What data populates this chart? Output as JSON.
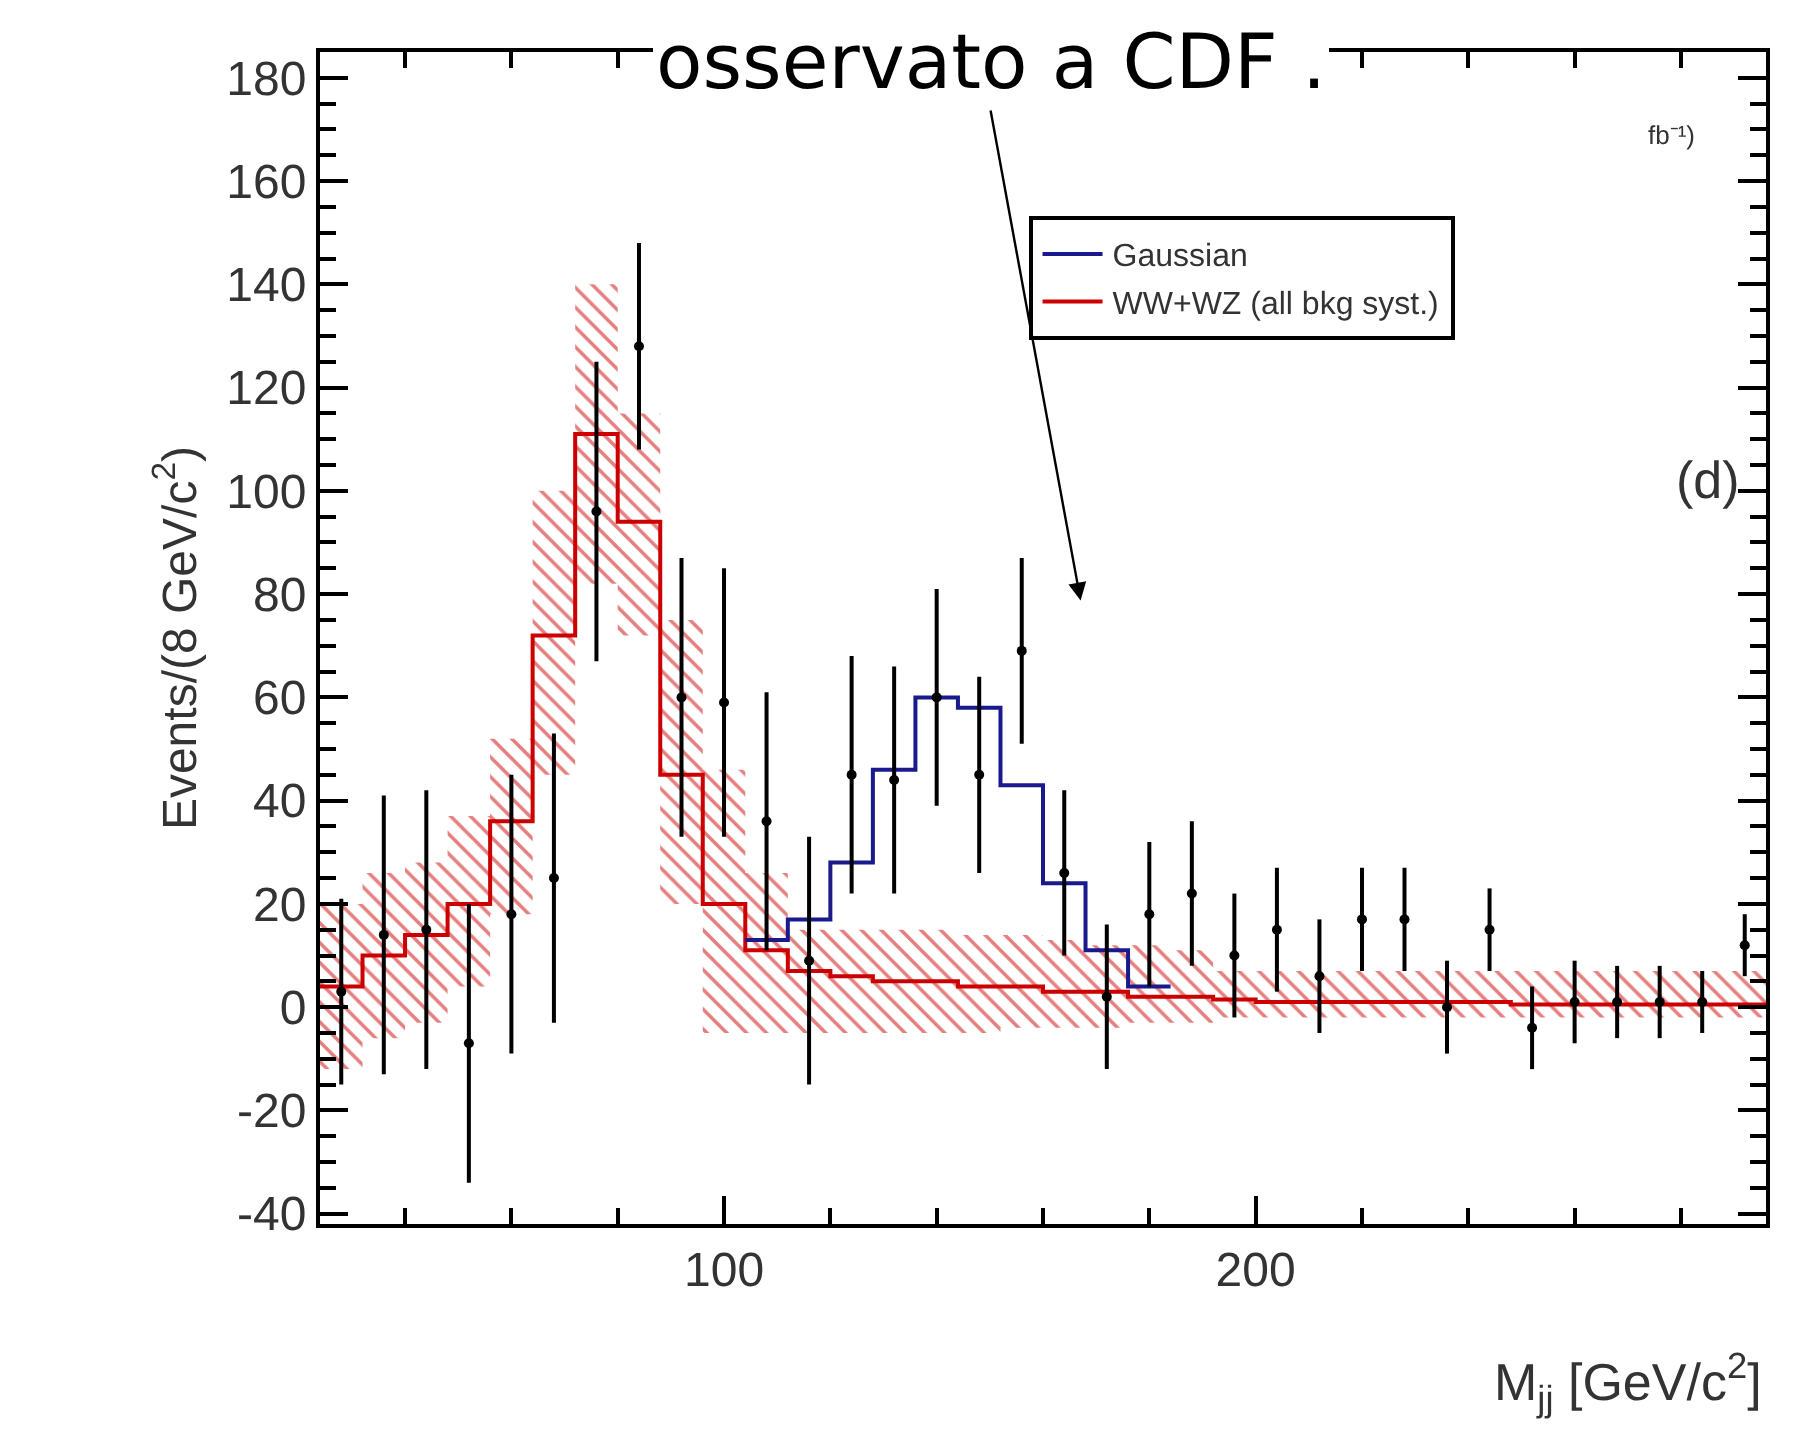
{
  "chart_data": {
    "type": "scatter",
    "xlabel": "M$_{jj}$ [GeV/c$^{2}$]",
    "ylabel": "Events/(8 GeV/c$^{2}$)",
    "xlim": [
      24,
      296
    ],
    "xticks": [
      100,
      200
    ],
    "ylim": [
      -42,
      185
    ],
    "yticks": [
      -40,
      -20,
      0,
      20,
      40,
      60,
      80,
      100,
      120,
      140,
      160,
      180
    ],
    "legend": "top right",
    "annotations": [
      "osservato a CDF .",
      "fb⁻¹)",
      "(d)"
    ],
    "series": [
      {
        "type": "step",
        "name": "WW+WZ (all bkg syst.)",
        "color": "#cc0000",
        "x": [
          24,
          32,
          40,
          48,
          56,
          64,
          72,
          80,
          88,
          96,
          104,
          112,
          120,
          128,
          136,
          144,
          152,
          160,
          168,
          176,
          184,
          192,
          200,
          208,
          216,
          224,
          232,
          240,
          248,
          256,
          264,
          272,
          280,
          288,
          296
        ],
        "values": [
          4,
          10,
          14,
          20,
          36,
          72,
          111,
          94,
          45,
          20,
          11,
          7,
          6,
          5,
          5,
          4,
          4,
          3,
          3,
          2,
          2,
          1.5,
          1,
          1,
          1,
          1,
          1,
          1,
          0.5,
          0.5,
          0.5,
          0.5,
          0.5,
          0.5,
          0.5
        ],
        "lower": [
          -12,
          -6,
          -3,
          4,
          18,
          45,
          82,
          72,
          20,
          -5,
          -5,
          -5,
          -5,
          -5,
          -5,
          -5,
          -4,
          -4,
          -4,
          -3,
          -3,
          -2,
          -2,
          -2,
          -2,
          -2,
          -2,
          -2,
          -2,
          -2,
          -2,
          -2,
          -2,
          -2,
          -2
        ],
        "upper": [
          20,
          26,
          28,
          37,
          52,
          100,
          140,
          115,
          75,
          46,
          26,
          15,
          15,
          15,
          15,
          14,
          14,
          13,
          12,
          12,
          11,
          7,
          7,
          7,
          7,
          7,
          7,
          7,
          7,
          7,
          7,
          7,
          7,
          7,
          7
        ]
      },
      {
        "type": "step",
        "name": "Gaussian",
        "color": "#1a1a8c",
        "x": [
          104,
          112,
          120,
          128,
          136,
          144,
          152,
          160,
          168,
          176,
          184
        ],
        "values": [
          13,
          17,
          28,
          46,
          60,
          58,
          43,
          24,
          11,
          4,
          4
        ]
      },
      {
        "color": "#000000",
        "marker": "circle",
        "x": [
          28,
          36,
          44,
          52,
          60,
          68,
          76,
          84,
          92,
          100,
          108,
          116,
          124,
          132,
          140,
          148,
          156,
          164,
          172,
          180,
          188,
          196,
          204,
          212,
          220,
          228,
          236,
          244,
          252,
          260,
          268,
          276,
          284,
          292
        ],
        "values": [
          3,
          14,
          15,
          -7,
          18,
          25,
          96,
          128,
          60,
          59,
          36,
          9,
          45,
          44,
          60,
          45,
          69,
          26,
          2,
          18,
          22,
          10,
          15,
          6,
          17,
          17,
          0,
          15,
          -4,
          1,
          1,
          1,
          1,
          12
        ],
        "errors": [
          18,
          27,
          27,
          27,
          27,
          28,
          29,
          20,
          27,
          26,
          25,
          24,
          23,
          22,
          21,
          19,
          18,
          16,
          14,
          14,
          14,
          12,
          12,
          11,
          10,
          10,
          9,
          8,
          8,
          8,
          7,
          7,
          6,
          6
        ]
      }
    ]
  }
}
